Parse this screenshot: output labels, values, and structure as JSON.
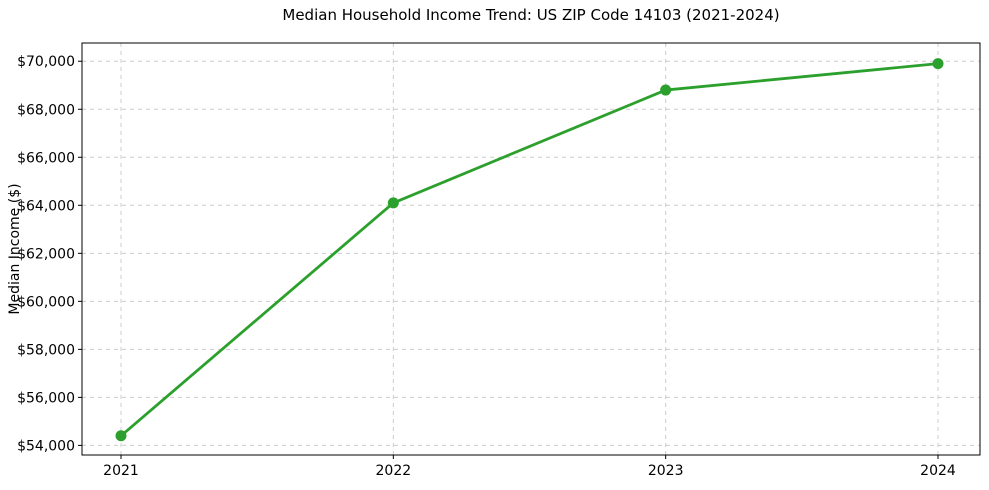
{
  "chart_data": {
    "type": "line",
    "title": "Median Household Income Trend: US ZIP Code 14103 (2021-2024)",
    "xlabel": "",
    "ylabel": "Median Income ($)",
    "x": [
      2021,
      2022,
      2023,
      2024
    ],
    "x_tick_labels": [
      "2021",
      "2022",
      "2023",
      "2024"
    ],
    "series": [
      {
        "name": "Median Household Income",
        "values": [
          54400,
          64100,
          68800,
          69900
        ],
        "color": "#2ca02c",
        "marker": "circle"
      }
    ],
    "y_ticks": [
      54000,
      56000,
      58000,
      60000,
      62000,
      64000,
      66000,
      68000,
      70000
    ],
    "y_tick_labels": [
      "$54,000",
      "$56,000",
      "$58,000",
      "$60,000",
      "$62,000",
      "$64,000",
      "$66,000",
      "$68,000",
      "$70,000"
    ],
    "ylim": [
      53600,
      70760
    ],
    "grid": true,
    "grid_style": "dashed",
    "grid_color": "#cccccc",
    "axis_color": "#000000",
    "background_color": "#ffffff",
    "legend": "none"
  }
}
